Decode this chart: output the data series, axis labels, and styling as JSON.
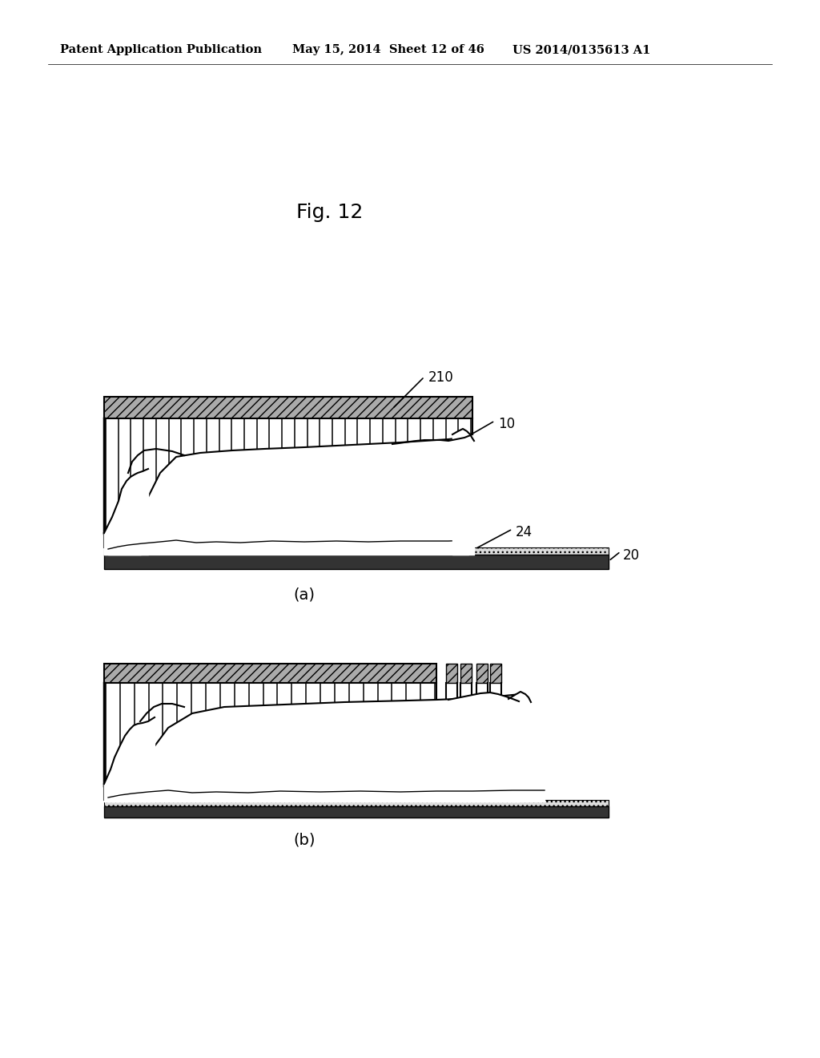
{
  "bg_color": "#ffffff",
  "header_left": "Patent Application Publication",
  "header_mid": "May 15, 2014  Sheet 12 of 46",
  "header_right": "US 2014/0135613 A1",
  "fig_label": "Fig. 12",
  "sub_a": "(a)",
  "sub_b": "(b)",
  "lbl_210": "210",
  "lbl_10": "10",
  "lbl_24": "24",
  "lbl_20": "20",
  "gray_hatch": "#c8c8c8",
  "dark_gray": "#888888",
  "black": "#000000",
  "white": "#ffffff"
}
